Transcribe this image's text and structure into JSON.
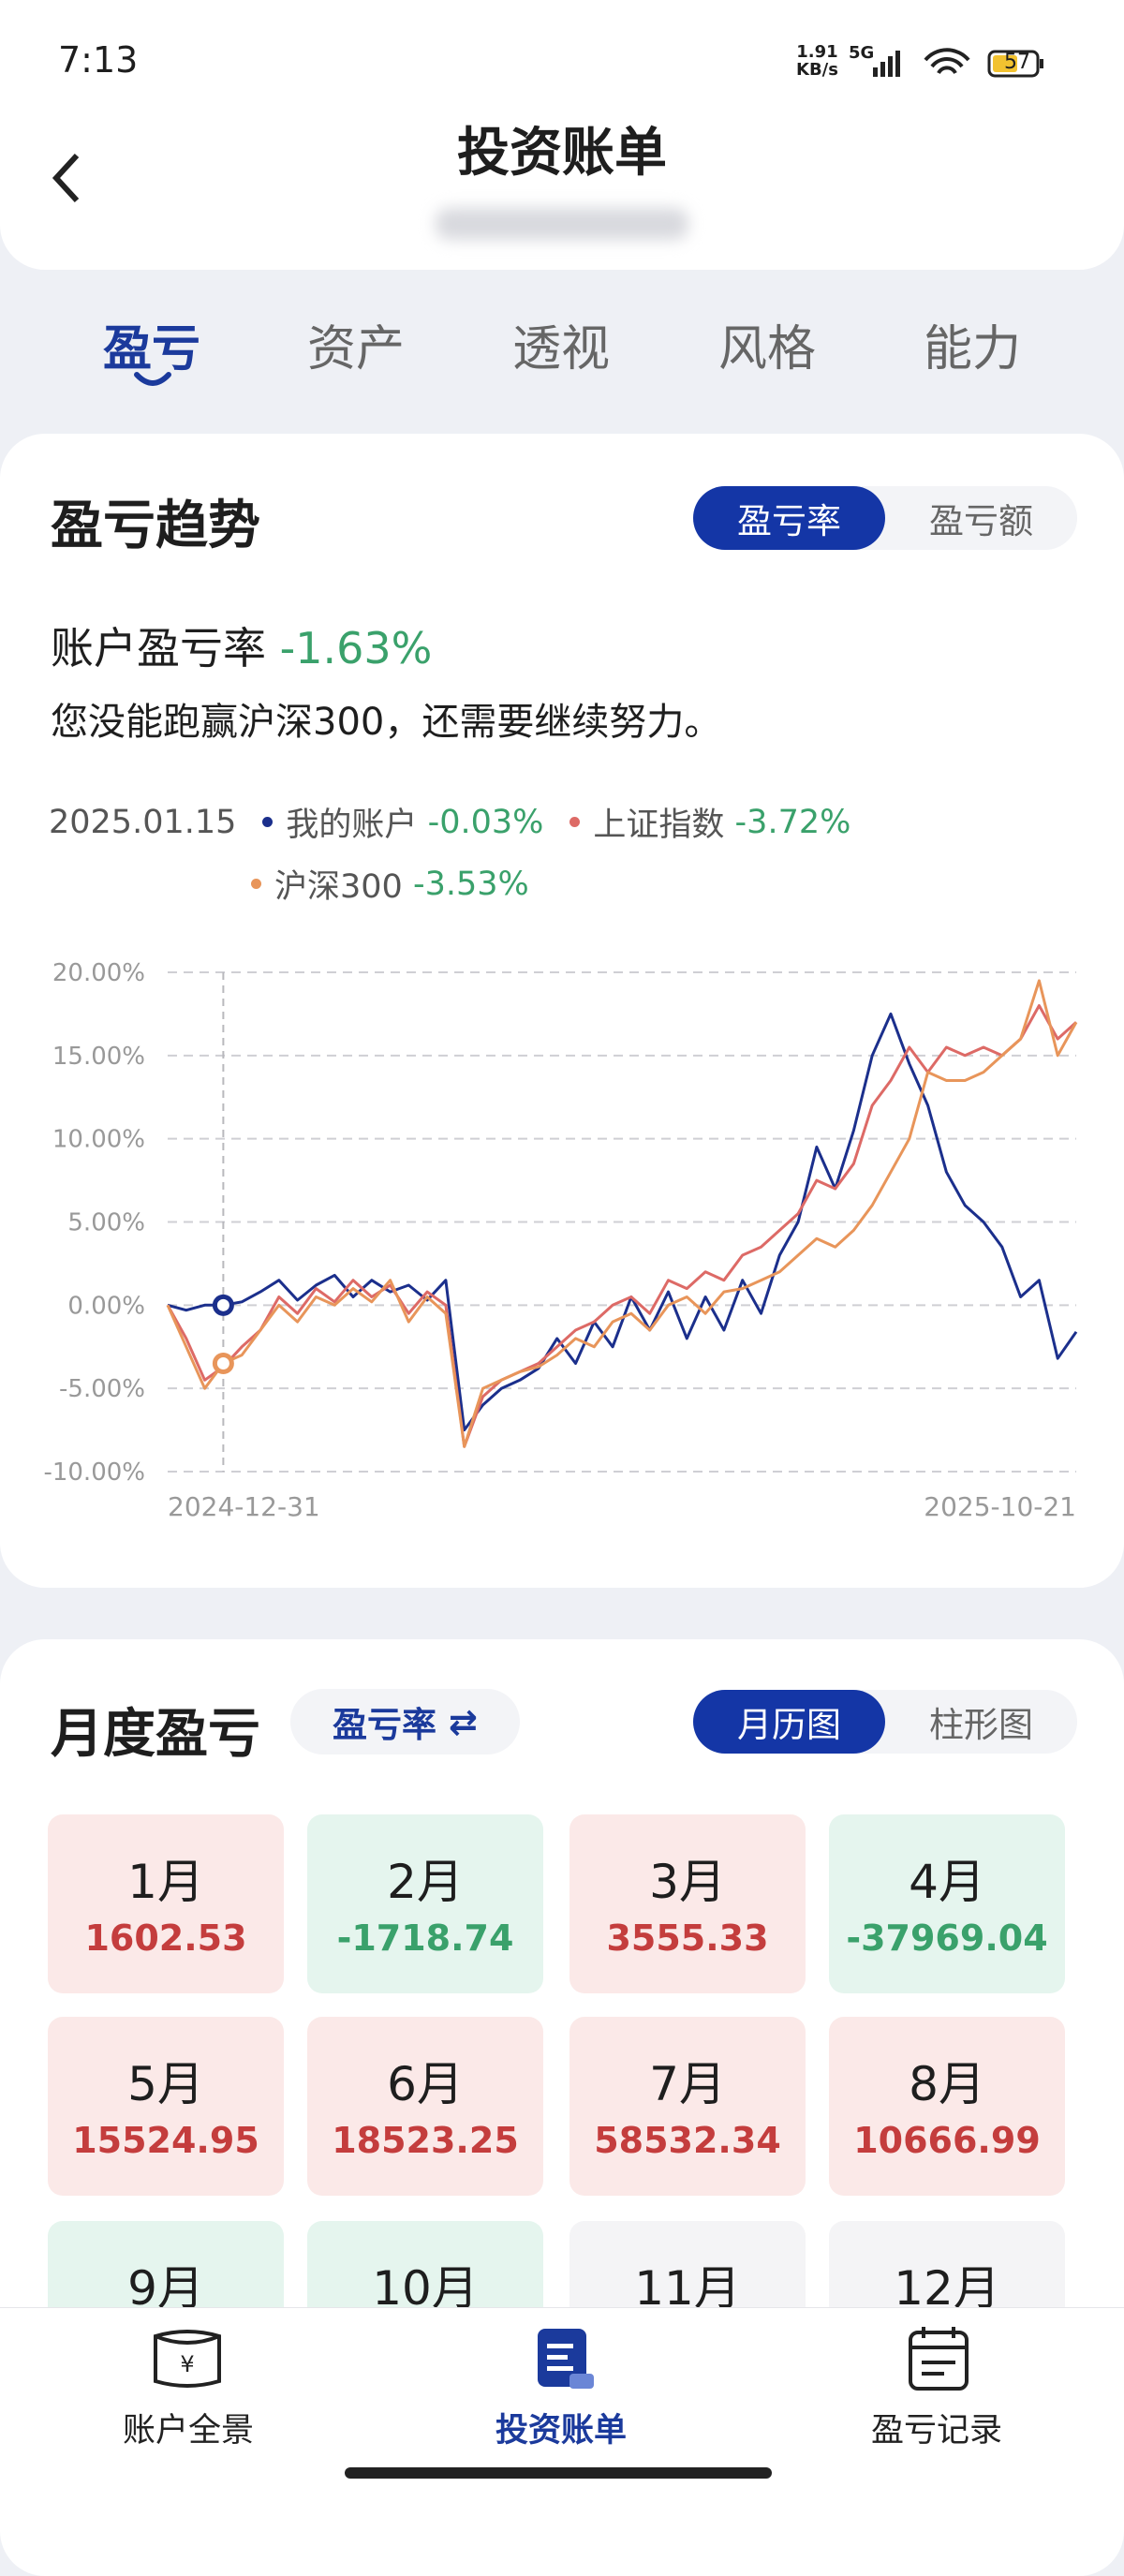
{
  "status_bar": {
    "time": "7:13",
    "speed": "1.91",
    "speed_unit": "KB/s",
    "network": "5G",
    "battery": "57"
  },
  "header": {
    "title": "投资账单"
  },
  "tabs": [
    "盈亏",
    "资产",
    "透视",
    "风格",
    "能力"
  ],
  "active_tab": 0,
  "trend": {
    "title": "盈亏趋势",
    "toggle": [
      "盈亏率",
      "盈亏额"
    ],
    "rate_label": "账户盈亏率",
    "rate_value": "-1.63%",
    "message": "您没能跑赢沪深300，还需要继续努力。",
    "legend_date": "2025.01.15",
    "legend_values": [
      "-0.03%",
      "-3.72%",
      "-3.53%"
    ]
  },
  "chart_data": {
    "type": "line",
    "categories": [
      "2024-12-31",
      null,
      null,
      null,
      null,
      null,
      null,
      null,
      null,
      null,
      null,
      null,
      null,
      null,
      null,
      null,
      null,
      null,
      null,
      null,
      null,
      null,
      null,
      null,
      null,
      null,
      null,
      null,
      null,
      null,
      null,
      null,
      null,
      null,
      null,
      null,
      null,
      null,
      null,
      null,
      null,
      null,
      null,
      null,
      null,
      null,
      null,
      null,
      null,
      "2025-10-21"
    ],
    "series": [
      {
        "name": "我的账户",
        "color": "#1b2f8c",
        "values": [
          0,
          -0.3,
          0,
          0,
          0.2,
          0.8,
          1.5,
          0.3,
          1.2,
          1.8,
          0.5,
          1.5,
          0.8,
          1.2,
          0.3,
          1.5,
          -7.5,
          -6,
          -5,
          -4.5,
          -3.8,
          -2,
          -3.5,
          -1,
          -2.5,
          0.5,
          -1.5,
          0.8,
          -2,
          0.5,
          -1.5,
          1.5,
          -0.5,
          3,
          5,
          9.5,
          7,
          10.5,
          15,
          17.5,
          14.5,
          12,
          8,
          6,
          5,
          3.5,
          0.5,
          1.5,
          -3.2,
          -1.6
        ]
      },
      {
        "name": "上证指数",
        "color": "#dd6a66",
        "values": [
          0,
          -2,
          -4.5,
          -3.7,
          -2.5,
          -1.5,
          0.5,
          -0.5,
          1,
          0.2,
          1.5,
          0.5,
          1.2,
          -0.5,
          0.8,
          0,
          -8.5,
          -5.5,
          -4.5,
          -4,
          -3.5,
          -2.5,
          -1.5,
          -1,
          0,
          0.5,
          -0.5,
          1.5,
          1,
          2,
          1.5,
          3,
          3.5,
          4.5,
          5.5,
          7.5,
          7,
          8.5,
          12,
          13.5,
          15.5,
          14,
          15.5,
          15,
          15.5,
          15,
          16,
          18,
          16,
          17
        ]
      },
      {
        "name": "沪深300",
        "color": "#e8955a",
        "values": [
          0,
          -2.5,
          -5,
          -3.5,
          -3,
          -1.5,
          0,
          -1,
          0.5,
          0,
          1,
          0.2,
          1.5,
          -1,
          0.5,
          -0.5,
          -8.5,
          -5,
          -4.5,
          -4,
          -3.7,
          -3,
          -2,
          -2.5,
          -1,
          -0.5,
          -1.5,
          0,
          0.5,
          -0.5,
          0.8,
          1,
          1.5,
          2,
          3,
          4,
          3.5,
          4.5,
          6,
          8,
          10,
          14,
          13.5,
          13.5,
          14,
          15,
          16,
          19.5,
          15,
          17
        ]
      }
    ],
    "ylim": [
      -10,
      20
    ],
    "yticks": [
      {
        "value": -10,
        "label": "-10.00%"
      },
      {
        "value": -5,
        "label": "-5.00%"
      },
      {
        "value": 0,
        "label": "0.00%"
      },
      {
        "value": 5,
        "label": "5.00%"
      },
      {
        "value": 10,
        "label": "10.00%"
      },
      {
        "value": 15,
        "label": "15.00%"
      },
      {
        "value": 20,
        "label": "20.00%"
      }
    ],
    "grid": true,
    "crosshair_index": 3
  },
  "monthly": {
    "title": "月度盈亏",
    "metric": "盈亏率",
    "toggle": [
      "月历图",
      "柱形图"
    ],
    "months": [
      {
        "label": "1月",
        "value": 1602.53,
        "tone": "gain"
      },
      {
        "label": "2月",
        "value": -1718.74,
        "tone": "loss"
      },
      {
        "label": "3月",
        "value": 3555.33,
        "tone": "gain"
      },
      {
        "label": "4月",
        "value": -37969.04,
        "tone": "loss"
      },
      {
        "label": "5月",
        "value": 15524.95,
        "tone": "gain"
      },
      {
        "label": "6月",
        "value": 18523.25,
        "tone": "gain"
      },
      {
        "label": "7月",
        "value": 58532.34,
        "tone": "gain"
      },
      {
        "label": "8月",
        "value": 10666.99,
        "tone": "gain"
      },
      {
        "label": "9月",
        "tone": "loss"
      },
      {
        "label": "10月",
        "tone": "loss"
      },
      {
        "label": "11月",
        "tone": "none"
      },
      {
        "label": "12月",
        "tone": "none"
      }
    ]
  },
  "nav": [
    "账户全景",
    "投资账单",
    "盈亏记录"
  ],
  "active_nav": 1
}
